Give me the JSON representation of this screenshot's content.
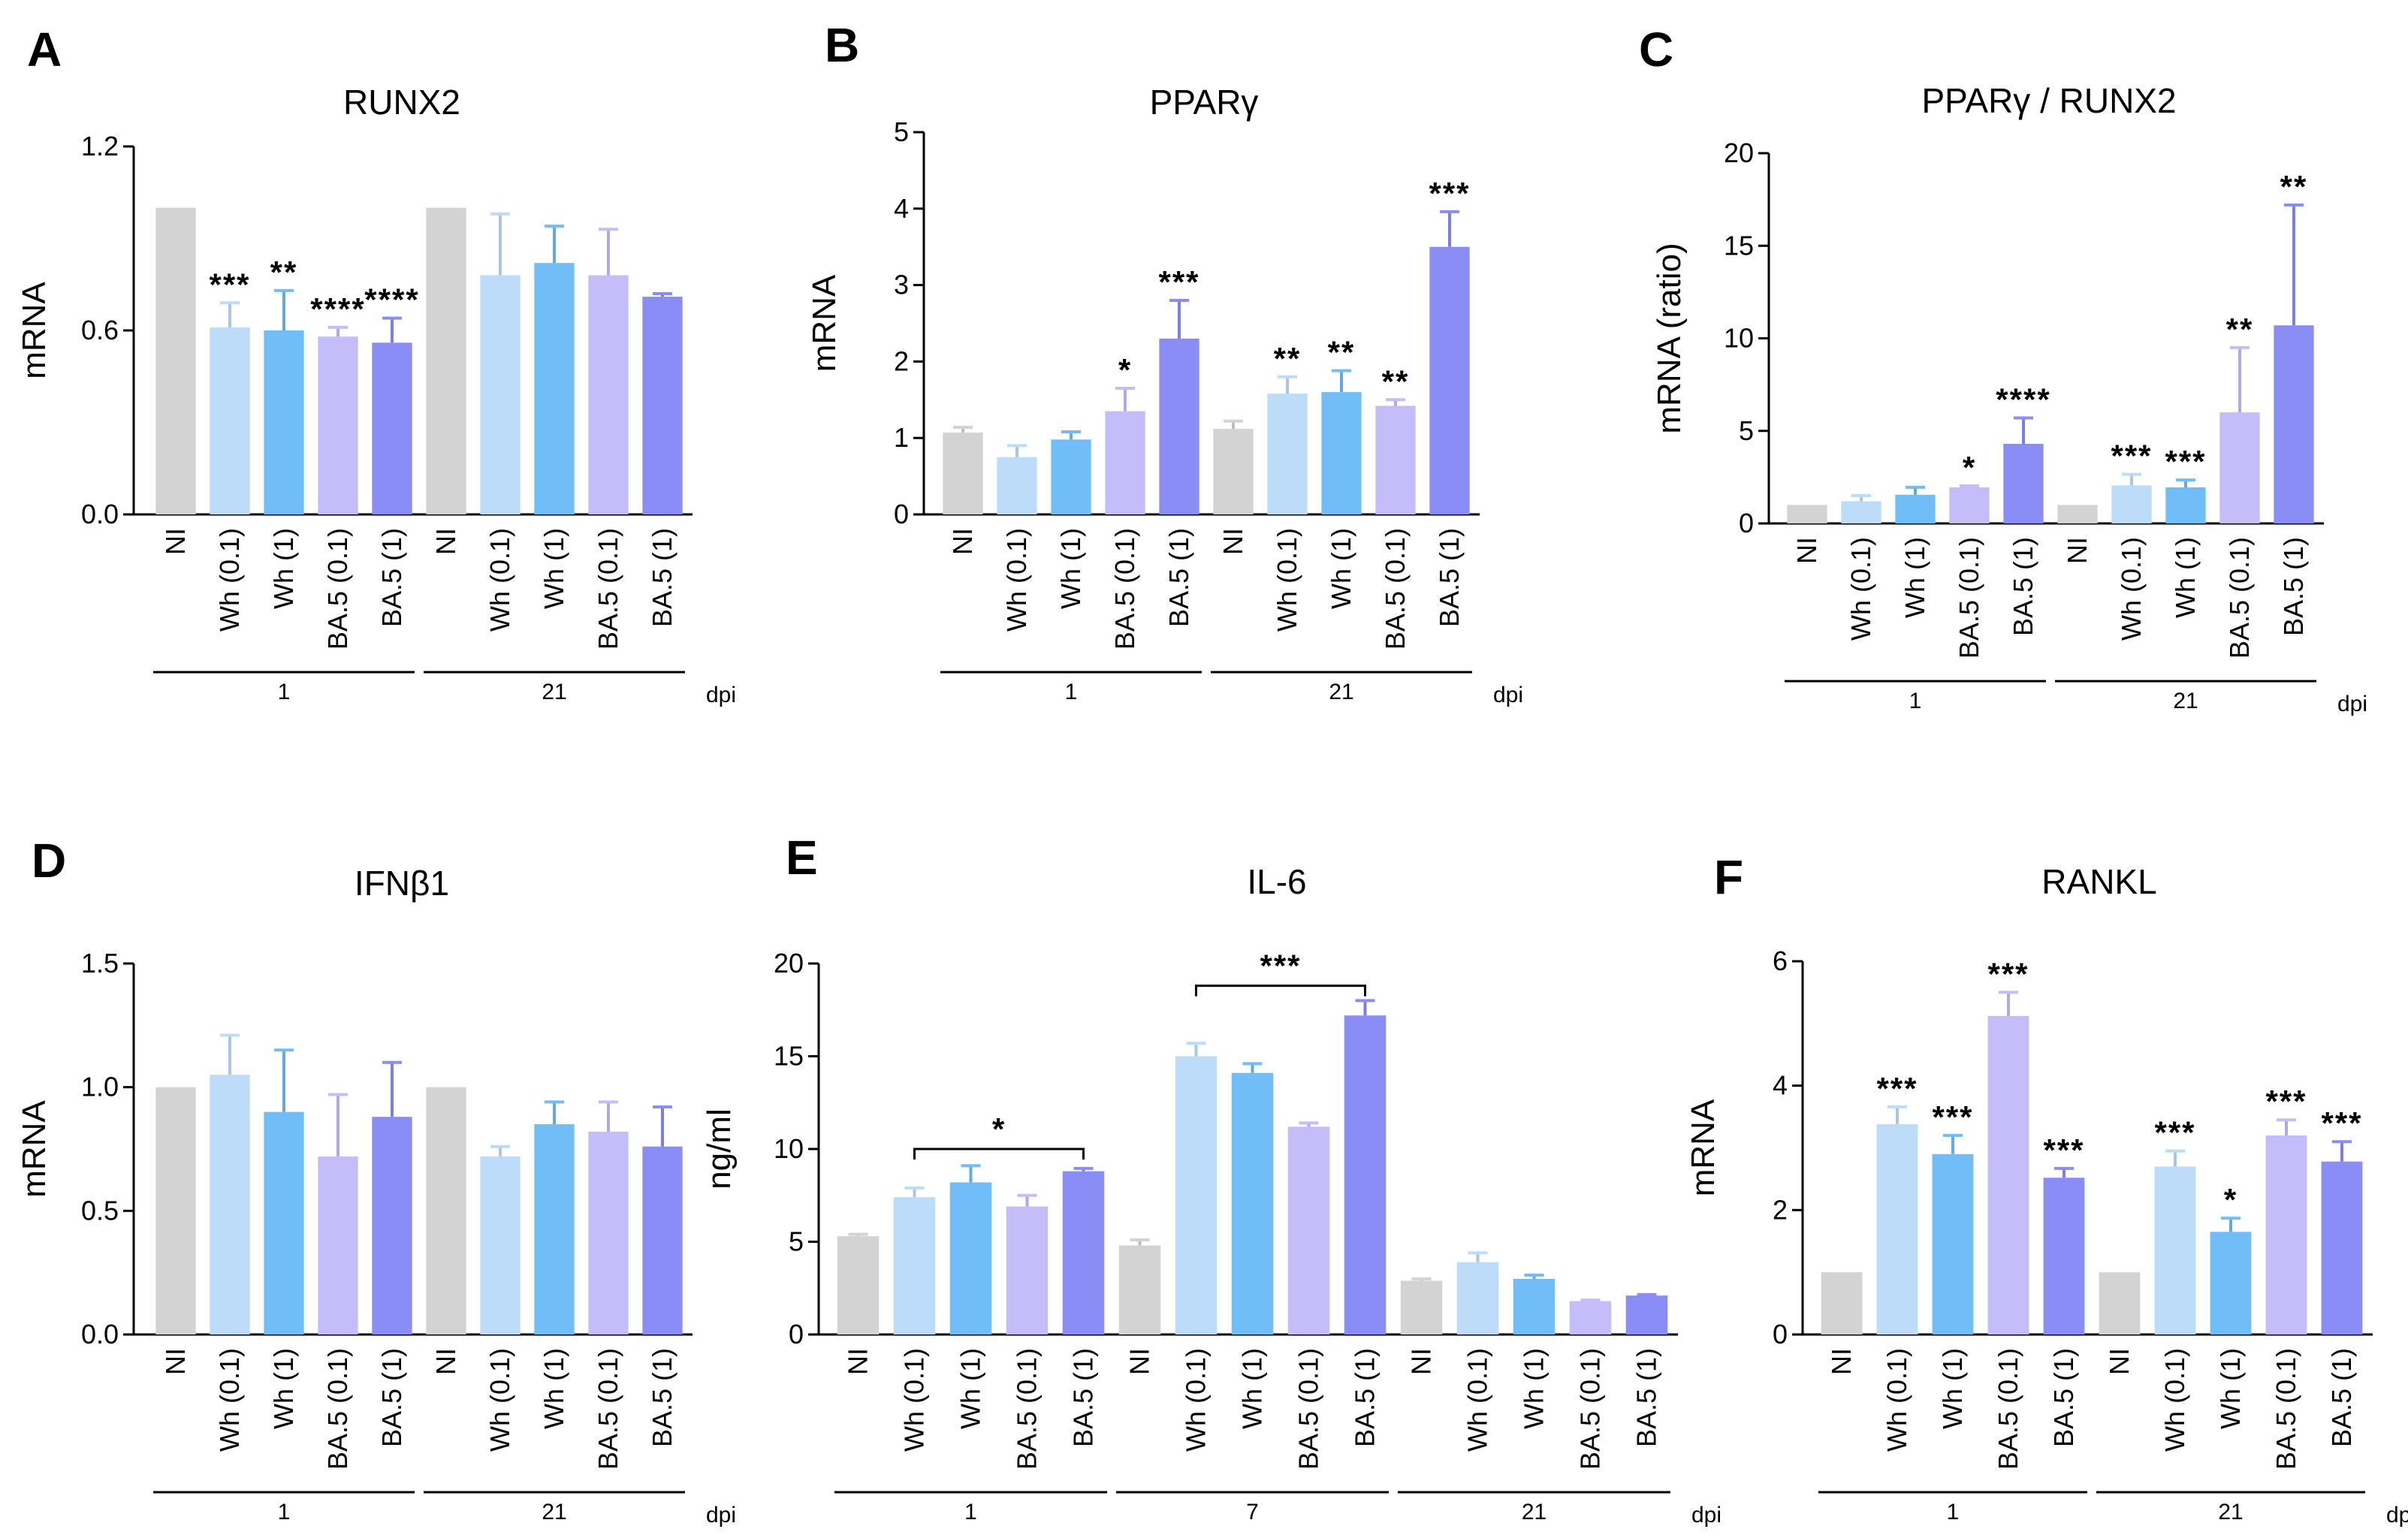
{
  "palette": {
    "NI": "#d3d3d3",
    "Wh (0.1)": "#bddcfa",
    "Wh (1)": "#70bdf8",
    "BA.5 (0.1)": "#c4bdfa",
    "BA.5 (1)": "#8b8df7"
  },
  "chart_data": [
    {
      "letter": "A",
      "type": "bar",
      "title": "RUNX2",
      "ylabel": "mRNA",
      "ylim": [
        0,
        1.2
      ],
      "yticks": [
        0.0,
        0.6,
        1.2
      ],
      "yticklabels": [
        "0.0",
        "0.6",
        "1.2"
      ],
      "categories": [
        "NI",
        "Wh (0.1)",
        "Wh (1)",
        "BA.5 (0.1)",
        "BA.5 (1)",
        "NI",
        "Wh (0.1)",
        "Wh (1)",
        "BA.5 (0.1)",
        "BA.5 (1)"
      ],
      "values": [
        1.0,
        0.61,
        0.6,
        0.58,
        0.56,
        1.0,
        0.78,
        0.82,
        0.78,
        0.71
      ],
      "errors": [
        0,
        0.08,
        0.13,
        0.03,
        0.08,
        0,
        0.2,
        0.12,
        0.15,
        0.01
      ],
      "significance": [
        "",
        "***",
        "**",
        "****",
        "****",
        "",
        "",
        "",
        "",
        ""
      ],
      "groups": [
        {
          "label": "1",
          "start": 0,
          "end": 4
        },
        {
          "label": "21",
          "start": 5,
          "end": 9
        }
      ],
      "group_unit": "dpi"
    },
    {
      "letter": "B",
      "type": "bar",
      "title": "PPARγ",
      "ylabel": "mRNA",
      "ylim": [
        0,
        5
      ],
      "yticks": [
        0,
        1,
        2,
        3,
        4,
        5
      ],
      "yticklabels": [
        "0",
        "1",
        "2",
        "3",
        "4",
        "5"
      ],
      "categories": [
        "NI",
        "Wh (0.1)",
        "Wh (1)",
        "BA.5 (0.1)",
        "BA.5 (1)",
        "NI",
        "Wh (0.1)",
        "Wh (1)",
        "BA.5 (0.1)",
        "BA.5 (1)"
      ],
      "values": [
        1.07,
        0.75,
        0.98,
        1.35,
        2.3,
        1.12,
        1.58,
        1.6,
        1.42,
        3.5
      ],
      "errors": [
        0.07,
        0.15,
        0.1,
        0.3,
        0.5,
        0.1,
        0.22,
        0.28,
        0.08,
        0.46
      ],
      "significance": [
        "",
        "",
        "",
        "*",
        "***",
        "",
        "**",
        "**",
        "**",
        "***"
      ],
      "groups": [
        {
          "label": "1",
          "start": 0,
          "end": 4
        },
        {
          "label": "21",
          "start": 5,
          "end": 9
        }
      ],
      "group_unit": "dpi"
    },
    {
      "letter": "C",
      "type": "bar",
      "title": "PPARγ / RUNX2",
      "ylabel": "mRNA (ratio)",
      "ylim": [
        0,
        20
      ],
      "yticks": [
        0,
        5,
        10,
        15,
        20
      ],
      "yticklabels": [
        "0",
        "5",
        "10",
        "15",
        "20"
      ],
      "categories": [
        "NI",
        "Wh (0.1)",
        "Wh (1)",
        "BA.5 (0.1)",
        "BA.5 (1)",
        "NI",
        "Wh (0.1)",
        "Wh (1)",
        "BA.5 (0.1)",
        "BA.5 (1)"
      ],
      "values": [
        1.0,
        1.2,
        1.55,
        1.95,
        4.3,
        1.0,
        2.05,
        1.95,
        6.0,
        10.7
      ],
      "errors": [
        0,
        0.3,
        0.4,
        0.08,
        1.4,
        0,
        0.6,
        0.4,
        3.5,
        6.5
      ],
      "significance": [
        "",
        "",
        "",
        "*",
        "****",
        "",
        "***",
        "***",
        "**",
        "**"
      ],
      "groups": [
        {
          "label": "1",
          "start": 0,
          "end": 4
        },
        {
          "label": "21",
          "start": 5,
          "end": 9
        }
      ],
      "group_unit": "dpi"
    },
    {
      "letter": "D",
      "type": "bar",
      "title": "IFNβ1",
      "ylabel": "mRNA",
      "ylim": [
        0,
        1.5
      ],
      "yticks": [
        0.0,
        0.5,
        1.0,
        1.5
      ],
      "yticklabels": [
        "0.0",
        "0.5",
        "1.0",
        "1.5"
      ],
      "categories": [
        "NI",
        "Wh (0.1)",
        "Wh (1)",
        "BA.5 (0.1)",
        "BA.5 (1)",
        "NI",
        "Wh (0.1)",
        "Wh (1)",
        "BA.5 (0.1)",
        "BA.5 (1)"
      ],
      "values": [
        1.0,
        1.05,
        0.9,
        0.72,
        0.88,
        1.0,
        0.72,
        0.85,
        0.82,
        0.76
      ],
      "errors": [
        0,
        0.16,
        0.25,
        0.25,
        0.22,
        0,
        0.04,
        0.09,
        0.12,
        0.16
      ],
      "significance": [
        "",
        "",
        "",
        "",
        "",
        "",
        "",
        "",
        "",
        ""
      ],
      "groups": [
        {
          "label": "1",
          "start": 0,
          "end": 4
        },
        {
          "label": "21",
          "start": 5,
          "end": 9
        }
      ],
      "group_unit": "dpi"
    },
    {
      "letter": "E",
      "type": "bar",
      "title": "IL-6",
      "ylabel": "ng/ml",
      "ylim": [
        0,
        20
      ],
      "yticks": [
        0,
        5,
        10,
        15,
        20
      ],
      "yticklabels": [
        "0",
        "5",
        "10",
        "15",
        "20"
      ],
      "categories": [
        "NI",
        "Wh (0.1)",
        "Wh (1)",
        "BA.5 (0.1)",
        "BA.5 (1)",
        "NI",
        "Wh (0.1)",
        "Wh (1)",
        "BA.5 (0.1)",
        "BA.5 (1)",
        "NI",
        "Wh (0.1)",
        "Wh (1)",
        "BA.5 (0.1)",
        "BA.5 (1)"
      ],
      "values": [
        5.3,
        7.4,
        8.2,
        6.9,
        8.8,
        4.8,
        15.0,
        14.1,
        11.2,
        17.2,
        2.9,
        3.9,
        3.0,
        1.8,
        2.1
      ],
      "errors": [
        0.1,
        0.5,
        0.9,
        0.6,
        0.15,
        0.3,
        0.7,
        0.5,
        0.2,
        0.8,
        0.1,
        0.5,
        0.2,
        0.05,
        0.05
      ],
      "significance": [
        "",
        "",
        "",
        "",
        "",
        "",
        "",
        "",
        "",
        "",
        "",
        "",
        "",
        "",
        ""
      ],
      "brackets": [
        {
          "from": 1,
          "to": 4,
          "y": 10,
          "label": "*"
        },
        {
          "from": 6,
          "to": 9,
          "y": 18.8,
          "label": "***"
        }
      ],
      "groups": [
        {
          "label": "1",
          "start": 0,
          "end": 4
        },
        {
          "label": "7",
          "start": 5,
          "end": 9
        },
        {
          "label": "21",
          "start": 10,
          "end": 14
        }
      ],
      "group_unit": "dpi"
    },
    {
      "letter": "F",
      "type": "bar",
      "title": "RANKL",
      "ylabel": "mRNA",
      "ylim": [
        0,
        6
      ],
      "yticks": [
        0,
        2,
        4,
        6
      ],
      "yticklabels": [
        "0",
        "2",
        "4",
        "6"
      ],
      "categories": [
        "NI",
        "Wh (0.1)",
        "Wh (1)",
        "BA.5 (0.1)",
        "BA.5 (1)",
        "NI",
        "Wh (0.1)",
        "Wh (1)",
        "BA.5 (0.1)",
        "BA.5 (1)"
      ],
      "values": [
        1.0,
        3.38,
        2.9,
        5.12,
        2.52,
        1.0,
        2.7,
        1.65,
        3.2,
        2.78
      ],
      "errors": [
        0,
        0.28,
        0.3,
        0.38,
        0.15,
        0,
        0.25,
        0.22,
        0.25,
        0.32
      ],
      "significance": [
        "",
        "***",
        "***",
        "***",
        "***",
        "",
        "***",
        "*",
        "***",
        "***"
      ],
      "groups": [
        {
          "label": "1",
          "start": 0,
          "end": 4
        },
        {
          "label": "21",
          "start": 5,
          "end": 9
        }
      ],
      "group_unit": "dpi"
    }
  ]
}
